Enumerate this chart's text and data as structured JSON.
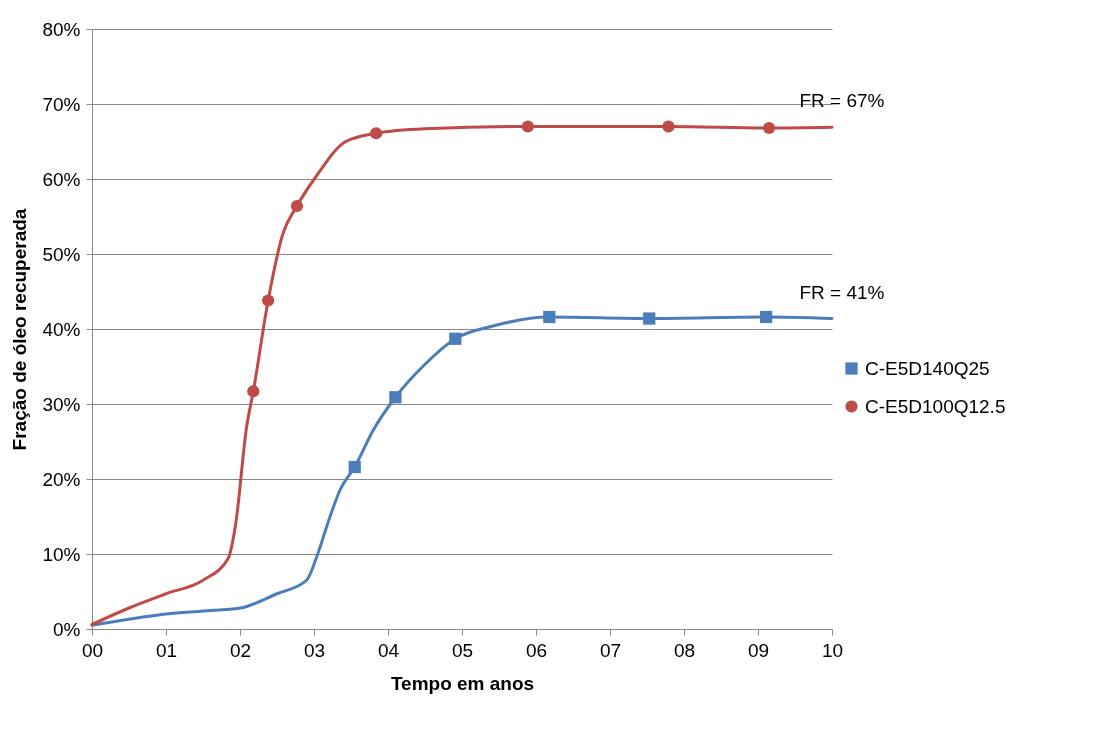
{
  "chart_data": {
    "type": "line",
    "xlabel": "Tempo em anos",
    "ylabel": "Fração de óleo recuperada",
    "xlim": [
      0,
      10
    ],
    "xticks": [
      {
        "value": 0,
        "label": "00"
      },
      {
        "value": 1,
        "label": "01"
      },
      {
        "value": 2,
        "label": "02"
      },
      {
        "value": 3,
        "label": "03"
      },
      {
        "value": 4,
        "label": "04"
      },
      {
        "value": 5,
        "label": "05"
      },
      {
        "value": 6,
        "label": "06"
      },
      {
        "value": 7,
        "label": "07"
      },
      {
        "value": 8,
        "label": "08"
      },
      {
        "value": 9,
        "label": "09"
      },
      {
        "value": 10,
        "label": "10"
      }
    ],
    "ylim": [
      0,
      80
    ],
    "yticks": [
      {
        "value": 0,
        "label": "0%"
      },
      {
        "value": 10,
        "label": "10%"
      },
      {
        "value": 20,
        "label": "20%"
      },
      {
        "value": 30,
        "label": "30%"
      },
      {
        "value": 40,
        "label": "40%"
      },
      {
        "value": 50,
        "label": "50%"
      },
      {
        "value": 60,
        "label": "60%"
      },
      {
        "value": 70,
        "label": "70%"
      },
      {
        "value": 80,
        "label": "80%"
      }
    ],
    "grid": "y",
    "legend": "right",
    "line_style": "solid",
    "annotations": [
      {
        "text": "FR = 67%",
        "x": 10,
        "y": 67
      },
      {
        "text": "FR = 41%",
        "x": 10,
        "y": 41.4
      }
    ],
    "series": [
      {
        "name": "C-E5D140Q25",
        "type": "line",
        "marker": "none",
        "color": "#4a7ebb",
        "x": [
          0,
          0.5,
          1,
          1.5,
          2,
          2.5,
          2.9,
          3.05,
          3.2,
          3.35,
          3.55,
          3.8,
          4.1,
          4.49,
          4.91,
          5.42,
          6.18,
          7.53,
          9.11,
          10
        ],
        "values": [
          0.5,
          1.3,
          2,
          2.4,
          2.8,
          4.7,
          6.5,
          10,
          14.5,
          18.5,
          21.6,
          26.5,
          30.9,
          35.2,
          38.7,
          40.4,
          41.6,
          41.4,
          41.6,
          41.4
        ]
      },
      {
        "name": "C-E5D100Q12.5",
        "type": "line",
        "marker": "none",
        "color": "#be4b48",
        "x": [
          0,
          0.5,
          1,
          1.5,
          1.84,
          1.94,
          2.09,
          2.18,
          2.38,
          2.58,
          2.77,
          3.04,
          3.43,
          3.84,
          4.5,
          5.89,
          7.79,
          9.15,
          10
        ],
        "values": [
          0.6,
          2.8,
          4.7,
          6.5,
          9.4,
          13.9,
          27,
          31.7,
          43.8,
          52.7,
          56.4,
          60.5,
          65,
          66.1,
          66.7,
          67,
          67,
          66.8,
          66.9
        ]
      },
      {
        "type": "scatter",
        "marker": "square",
        "color": "#4a7ebb",
        "x": [
          3.55,
          4.1,
          4.91,
          6.18,
          7.53,
          9.11
        ],
        "values": [
          21.6,
          30.9,
          38.7,
          41.6,
          41.4,
          41.6
        ]
      },
      {
        "type": "scatter",
        "marker": "circle",
        "color": "#be4b48",
        "x": [
          2.18,
          2.38,
          2.77,
          3.84,
          5.89,
          7.79,
          9.15
        ],
        "values": [
          31.7,
          43.8,
          56.4,
          66.1,
          67,
          67,
          66.8
        ]
      }
    ]
  }
}
